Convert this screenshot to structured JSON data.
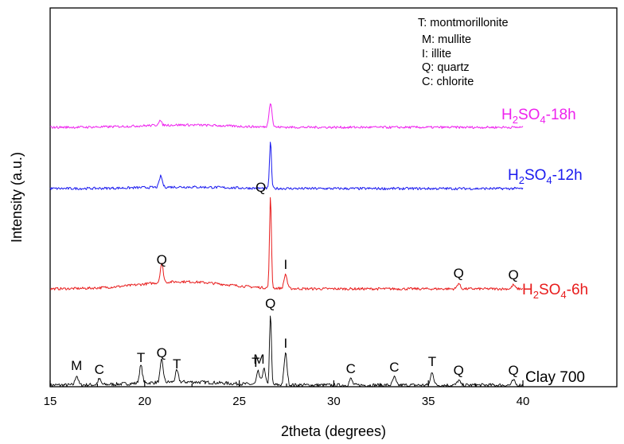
{
  "chart_data": {
    "type": "line",
    "xlabel": "2theta (degrees)",
    "ylabel": "Intensity (a.u.)",
    "xlim": [
      15,
      40
    ],
    "xticks": [
      15,
      20,
      25,
      30,
      35,
      40
    ],
    "legend_title_lines": [
      "T: montmorillonite",
      "M: mullite",
      "I: illite",
      "Q: quartz",
      "C: chlorite"
    ],
    "series": [
      {
        "name": "Clay 700",
        "label_parts": [
          "Clay 700"
        ],
        "color": "#000000",
        "peaks": [
          {
            "x": 16.4,
            "letter": "M",
            "h": 12
          },
          {
            "x": 17.6,
            "letter": "C",
            "h": 7
          },
          {
            "x": 19.8,
            "letter": "T",
            "h": 22
          },
          {
            "x": 20.9,
            "letter": "Q",
            "h": 28
          },
          {
            "x": 21.7,
            "letter": "T",
            "h": 14
          },
          {
            "x": 26.0,
            "letter": "T",
            "h": 16
          },
          {
            "x": 26.3,
            "letter": "M",
            "h": 20
          },
          {
            "x": 26.65,
            "letter": "Q",
            "h": 90
          },
          {
            "x": 27.45,
            "letter": "I",
            "h": 40
          },
          {
            "x": 30.9,
            "letter": "C",
            "h": 8
          },
          {
            "x": 33.2,
            "letter": "C",
            "h": 10
          },
          {
            "x": 35.2,
            "letter": "T",
            "h": 17
          },
          {
            "x": 36.6,
            "letter": "Q",
            "h": 6
          },
          {
            "x": 39.5,
            "letter": "Q",
            "h": 6
          }
        ]
      },
      {
        "name": "H2SO4-6h",
        "label_parts": [
          "H",
          "2",
          "SO",
          "4",
          "-6h"
        ],
        "color": "#e81c1c",
        "peaks": [
          {
            "x": 20.9,
            "letter": "Q",
            "h": 24
          },
          {
            "x": 26.65,
            "letter": "Q",
            "h": 115
          },
          {
            "x": 27.45,
            "letter": "I",
            "h": 18
          },
          {
            "x": 36.6,
            "letter": "Q",
            "h": 7
          },
          {
            "x": 39.5,
            "letter": "Q",
            "h": 5
          }
        ]
      },
      {
        "name": "H2SO4-12h",
        "label_parts": [
          "H",
          "2",
          "SO",
          "4",
          "-12h"
        ],
        "color": "#1a1aef",
        "peaks": [
          {
            "x": 20.85,
            "letter": "",
            "h": 14
          },
          {
            "x": 26.65,
            "letter": "",
            "h": 60
          }
        ]
      },
      {
        "name": "H2SO4-18h",
        "label_parts": [
          "H",
          "2",
          "SO",
          "4",
          "-18h"
        ],
        "color": "#ee22ee",
        "peaks": [
          {
            "x": 20.8,
            "letter": "",
            "h": 6
          },
          {
            "x": 26.65,
            "letter": "",
            "h": 31
          }
        ]
      }
    ]
  }
}
